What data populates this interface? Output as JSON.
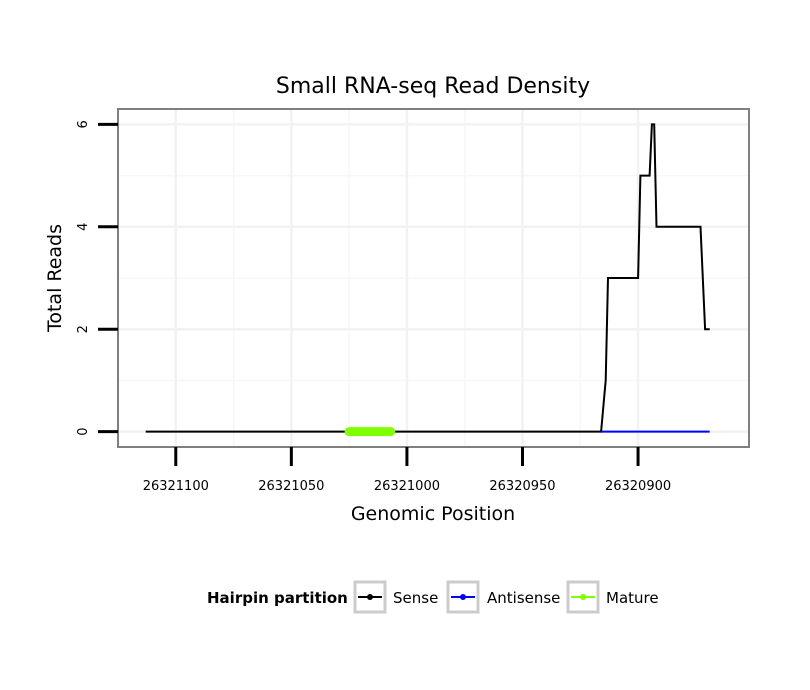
{
  "chart_data": {
    "type": "line",
    "title": "Small RNA-seq Read Density",
    "xlabel": "Genomic Position",
    "ylabel": "Total Reads",
    "x_reversed": true,
    "xlim": [
      26321125,
      26320852
    ],
    "ylim": [
      -0.3,
      6.3
    ],
    "x_ticks": [
      26321100,
      26321050,
      26321000,
      26320950,
      26320900
    ],
    "y_ticks": [
      0,
      2,
      4,
      6
    ],
    "x_tick_labels": [
      "26321100",
      "26321050",
      "26321000",
      "26320950",
      "26320900"
    ],
    "y_tick_labels": [
      "0",
      "2",
      "4",
      "6"
    ],
    "grid": true,
    "legend": {
      "title": "Hairpin partition",
      "position": "bottom",
      "entries": [
        {
          "name": "Sense",
          "color": "#000000"
        },
        {
          "name": "Antisense",
          "color": "#0000ff"
        },
        {
          "name": "Mature",
          "color": "#7fff00"
        }
      ]
    },
    "series": [
      {
        "name": "Sense",
        "color": "#000000",
        "points": [
          [
            26321113,
            0
          ],
          [
            26320916,
            0
          ],
          [
            26320914,
            1
          ],
          [
            26320913,
            3
          ],
          [
            26320900,
            3
          ],
          [
            26320899,
            5
          ],
          [
            26320895,
            5
          ],
          [
            26320894,
            6
          ],
          [
            26320893,
            6
          ],
          [
            26320892,
            4
          ],
          [
            26320873,
            4
          ],
          [
            26320871,
            2
          ],
          [
            26320869,
            2
          ]
        ]
      },
      {
        "name": "Antisense",
        "color": "#0000ff",
        "points": [
          [
            26320916,
            0
          ],
          [
            26320869,
            0
          ]
        ]
      },
      {
        "name": "Mature",
        "color": "#7fff00",
        "points": [
          [
            26321025,
            0
          ],
          [
            26321007,
            0
          ]
        ]
      }
    ]
  }
}
